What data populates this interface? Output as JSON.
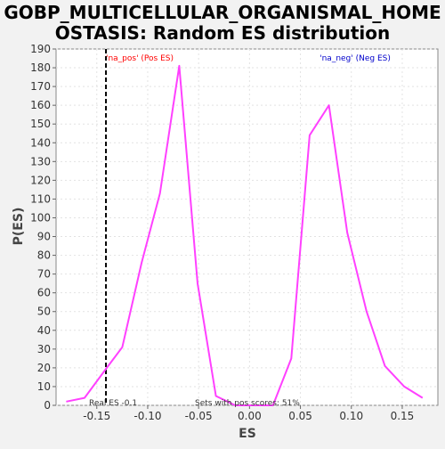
{
  "chart_data": {
    "type": "line",
    "title_lines": [
      "GOBP_MULTICELLULAR_ORGANISMAL_HOME",
      "OSTASIS: Random ES distribution"
    ],
    "xlabel": "ES",
    "ylabel": "P(ES)",
    "xlim": [
      -0.19,
      0.185
    ],
    "ylim": [
      0,
      190
    ],
    "x_ticks": [
      -0.15,
      -0.1,
      -0.05,
      0.0,
      0.05,
      0.1,
      0.15
    ],
    "x_tick_labels": [
      "-0.15",
      "-0.10",
      "-0.05",
      "0.00",
      "0.05",
      "0.10",
      "0.15"
    ],
    "y_ticks": [
      0,
      10,
      20,
      30,
      40,
      50,
      60,
      70,
      80,
      90,
      100,
      110,
      120,
      130,
      140,
      150,
      160,
      170,
      180,
      190
    ],
    "grid": true,
    "line_color": "#ff40ff",
    "series": [
      {
        "x": [
          -0.18,
          -0.162,
          -0.143,
          -0.125,
          -0.106,
          -0.088,
          -0.069,
          -0.051,
          -0.033,
          -0.014,
          0.004,
          0.023,
          0.041,
          0.059,
          0.078,
          0.096,
          0.115,
          0.133,
          0.152,
          0.17
        ],
        "values": [
          2,
          4,
          18,
          31,
          76,
          113,
          181,
          65,
          5,
          0,
          0,
          0,
          25,
          144,
          160,
          92,
          50,
          21,
          10,
          4
        ]
      }
    ],
    "real_es": -0.141,
    "real_es_line_color": "#000000",
    "annotations": {
      "pos_label": "'na_pos' (Pos ES)",
      "pos_color": "#ff0000",
      "neg_label": "'na_neg' (Neg ES)",
      "neg_color": "#0000cc",
      "real_es_text": "Real ES -0.1",
      "pos_scores_text": "Sets with pos scores: 51%"
    }
  }
}
